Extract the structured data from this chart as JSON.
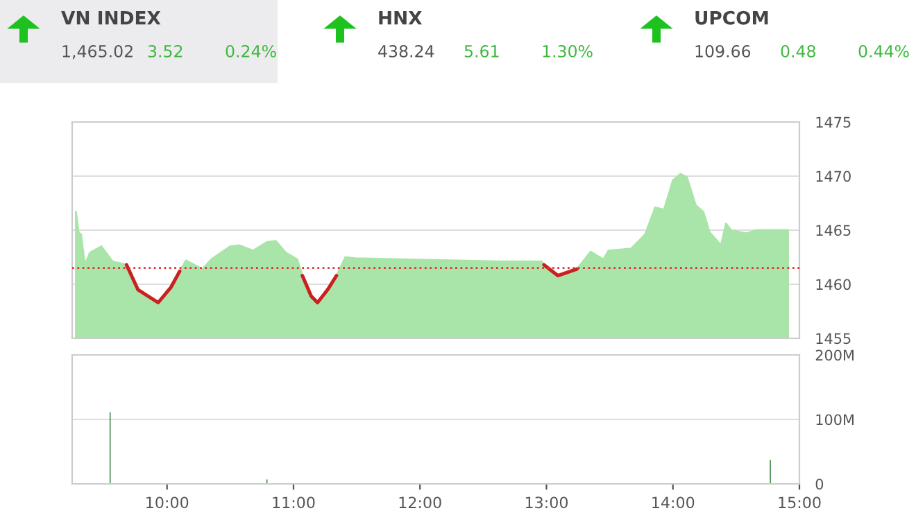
{
  "chart_data": [
    {
      "type": "other",
      "annotations": [
        "VN INDEX",
        "1,465.02",
        "3.52",
        "0.24%",
        "HNX",
        "438.24",
        "5.61",
        "1.30%",
        "UPCOM",
        "109.66",
        "0.48",
        "0.44%"
      ]
    },
    {
      "type": "area",
      "x": [
        9.28,
        9.3,
        9.32,
        9.35,
        9.39,
        9.48,
        9.57,
        9.68,
        9.77,
        9.93,
        10.03,
        10.1,
        10.15,
        10.28,
        10.35,
        10.5,
        10.57,
        10.68,
        10.79,
        10.86,
        10.94,
        11.03,
        11.07,
        11.14,
        11.19,
        11.27,
        11.34,
        11.41,
        11.49,
        12.62,
        12.96,
        12.98,
        13.09,
        13.24,
        13.35,
        13.45,
        13.49,
        13.67,
        13.78,
        13.86,
        13.93,
        14.0,
        14.06,
        14.11,
        14.18,
        14.24,
        14.29,
        14.38,
        14.42,
        14.46,
        14.58,
        14.66,
        14.91
      ],
      "series": [
        {
          "type": "area",
          "color": "#a9e4a9",
          "values": [
            1466.7,
            1464.8,
            1464.6,
            1461.8,
            1462.9,
            1463.5,
            1462.1,
            1461.8,
            1459.5,
            1458.3,
            1459.7,
            1461.2,
            1462.2,
            1461.4,
            1462.3,
            1463.5,
            1463.6,
            1463.1,
            1463.9,
            1464.0,
            1462.9,
            1462.3,
            1460.8,
            1458.9,
            1458.3,
            1459.5,
            1460.8,
            1462.5,
            1462.4,
            1462.1,
            1462.1,
            1461.8,
            1460.8,
            1461.4,
            1463.0,
            1462.3,
            1463.1,
            1463.3,
            1464.6,
            1467.1,
            1466.9,
            1469.6,
            1470.2,
            1469.9,
            1467.3,
            1466.7,
            1464.8,
            1463.6,
            1465.6,
            1465.0,
            1464.7,
            1465.0,
            1465.0
          ]
        },
        {
          "type": "line",
          "color": "#cc1f1f",
          "values": [
            null,
            null,
            null,
            null,
            null,
            null,
            null,
            1461.8,
            1459.5,
            1458.3,
            1459.7,
            1461.2,
            null,
            null,
            null,
            null,
            null,
            null,
            null,
            null,
            null,
            null,
            1460.8,
            1458.9,
            1458.3,
            1459.5,
            1460.8,
            null,
            null,
            null,
            null,
            1461.8,
            1460.8,
            1461.4,
            null,
            null,
            null,
            null,
            null,
            null,
            null,
            null,
            null,
            null,
            null,
            null,
            null,
            null,
            null,
            null,
            null,
            null,
            null
          ]
        }
      ],
      "xlim": [
        9.25,
        15
      ],
      "ylim": [
        1455,
        1475
      ],
      "yticks": [
        1455,
        1460,
        1465,
        1470,
        1475
      ],
      "grid": "y",
      "tick_labels": "y",
      "ref_lines": [
        {
          "axis": "y",
          "value": 1461.5,
          "color": "#e03030",
          "line_style": "dotted"
        }
      ]
    },
    {
      "type": "bar",
      "x": [
        9.55,
        10.0,
        10.79,
        11.1,
        13.0,
        14.0,
        14.77
      ],
      "series": [
        {
          "color": "#2e7d32",
          "values": [
            111000000,
            1000000,
            7000000,
            1000000,
            1000000,
            1000000,
            37000000
          ]
        }
      ],
      "xlim": [
        9.25,
        15
      ],
      "xticks": [
        {
          "value": 10,
          "label": "10:00"
        },
        {
          "value": 11,
          "label": "11:00"
        },
        {
          "value": 12,
          "label": "12:00"
        },
        {
          "value": 13,
          "label": "13:00"
        },
        {
          "value": 14,
          "label": "14:00"
        },
        {
          "value": 15,
          "label": "15:00"
        }
      ],
      "ylim": [
        0,
        200000000
      ],
      "yticks": [
        0,
        {
          "value": 100000000,
          "label": "100M"
        },
        {
          "value": 200000000,
          "label": "200M"
        }
      ],
      "grid": "y"
    }
  ]
}
